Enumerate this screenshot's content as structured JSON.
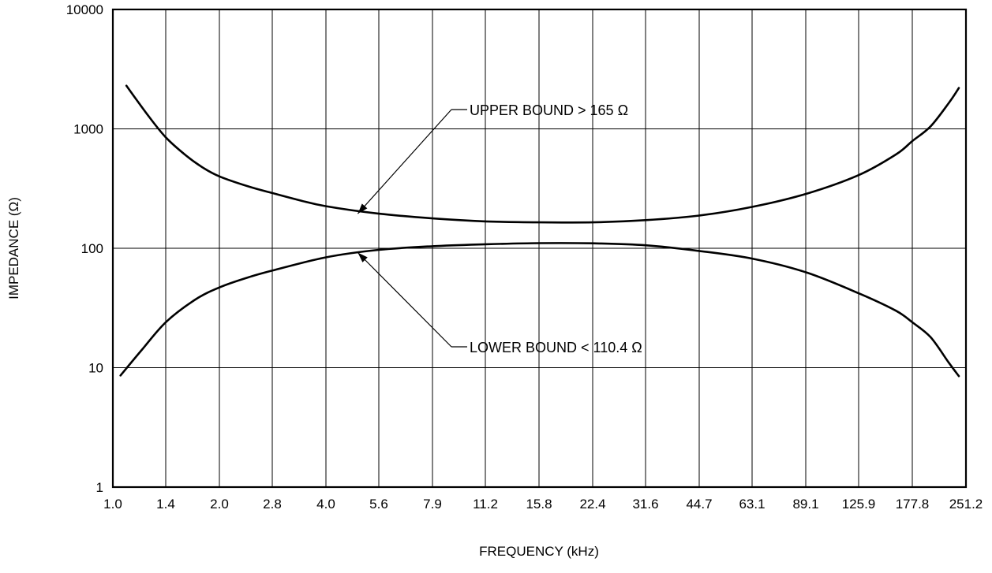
{
  "chart_data": {
    "type": "line",
    "title": "",
    "xlabel": "FREQUENCY (kHz)",
    "ylabel": "IMPEDANCE (Ω)",
    "x_scale": "log",
    "y_scale": "log",
    "xlim": [
      1.0,
      251.2
    ],
    "ylim": [
      1,
      10000
    ],
    "grid": true,
    "x_ticks": [
      "1.0",
      "1.4",
      "2.0",
      "2.8",
      "4.0",
      "5.6",
      "7.9",
      "11.2",
      "15.8",
      "22.4",
      "31.6",
      "44.7",
      "63.1",
      "89.1",
      "125.9",
      "177.8",
      "251.2"
    ],
    "y_ticks": [
      "1",
      "10",
      "100",
      "1000",
      "10000"
    ],
    "series": [
      {
        "name": "UPPER BOUND > 165 Ω",
        "x": [
          1.09,
          1.25,
          1.4,
          1.6,
          1.8,
          2.0,
          2.4,
          2.8,
          3.4,
          4.0,
          5.6,
          7.9,
          11.2,
          15.8,
          22.4,
          31.6,
          44.7,
          63.1,
          89.1,
          125.9,
          160.0,
          177.8,
          200.0,
          225.0,
          240.0
        ],
        "y": [
          2300,
          1300,
          850,
          600,
          470,
          400,
          330,
          290,
          250,
          225,
          195,
          178,
          168,
          165,
          165,
          172,
          188,
          222,
          285,
          410,
          610,
          790,
          1050,
          1650,
          2200
        ]
      },
      {
        "name": "LOWER BOUND < 110.4 Ω",
        "x": [
          1.05,
          1.2,
          1.4,
          1.7,
          2.0,
          2.4,
          2.8,
          4.0,
          5.6,
          7.9,
          11.2,
          15.8,
          22.4,
          31.6,
          44.7,
          63.1,
          89.1,
          125.9,
          160.0,
          177.8,
          200.0,
          225.0,
          240.0
        ],
        "y": [
          8.6,
          14,
          24,
          37,
          47,
          57,
          65,
          84,
          97,
          104,
          108,
          110.4,
          110,
          106,
          95,
          82,
          63,
          42,
          30,
          24,
          18,
          11,
          8.5
        ]
      }
    ],
    "annotations": [
      {
        "text": "UPPER BOUND > 165 Ω",
        "target_x": 4.9,
        "target_y": 195
      },
      {
        "text": "LOWER BOUND < 110.4 Ω",
        "target_x": 4.9,
        "target_y": 92
      }
    ]
  }
}
